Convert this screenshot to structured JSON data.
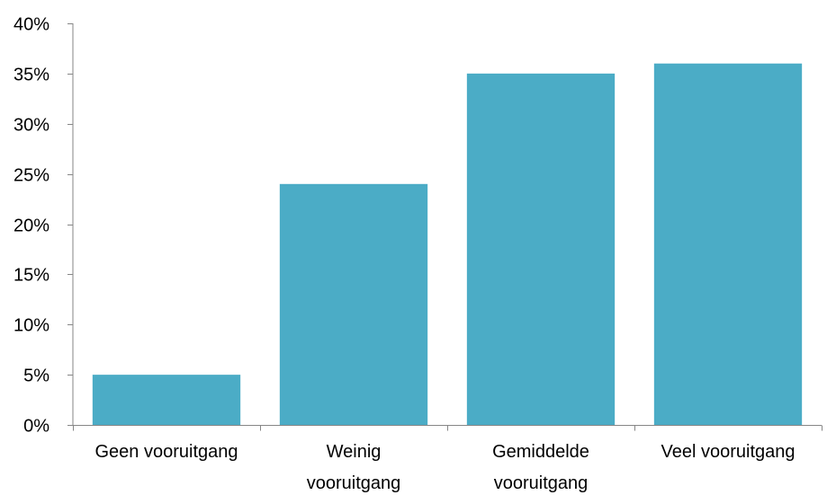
{
  "chart_data": {
    "type": "bar",
    "categories": [
      [
        "Geen vooruitgang"
      ],
      [
        "Weinig",
        "vooruitgang"
      ],
      [
        "Gemiddelde",
        "vooruitgang"
      ],
      [
        "Veel vooruitgang"
      ]
    ],
    "values": [
      5,
      24,
      35,
      36
    ],
    "ylim": [
      0,
      40
    ],
    "ytick_step": 5,
    "ytick_labels": [
      "0%",
      "5%",
      "10%",
      "15%",
      "20%",
      "25%",
      "30%",
      "35%",
      "40%"
    ],
    "grid": false,
    "legend": false,
    "title": "",
    "xlabel": "",
    "ylabel": "",
    "colors": {
      "bar": "#4BACC6",
      "axis": "#868686"
    }
  }
}
